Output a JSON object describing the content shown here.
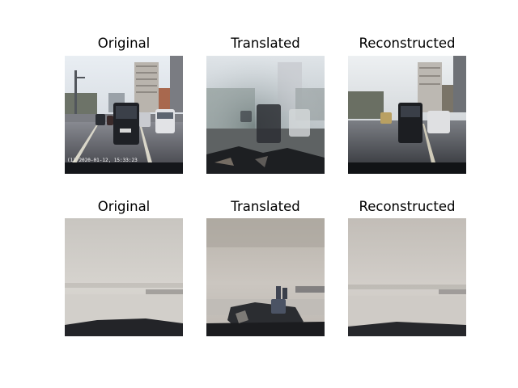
{
  "figure": {
    "rows": [
      {
        "panels": [
          {
            "title": "Original"
          },
          {
            "title": "Translated"
          },
          {
            "title": "Reconstructed"
          }
        ],
        "overlay_text": "(1) 2020-01-12, 15:33:23"
      },
      {
        "panels": [
          {
            "title": "Original"
          },
          {
            "title": "Translated"
          },
          {
            "title": "Reconstructed"
          }
        ]
      }
    ]
  }
}
